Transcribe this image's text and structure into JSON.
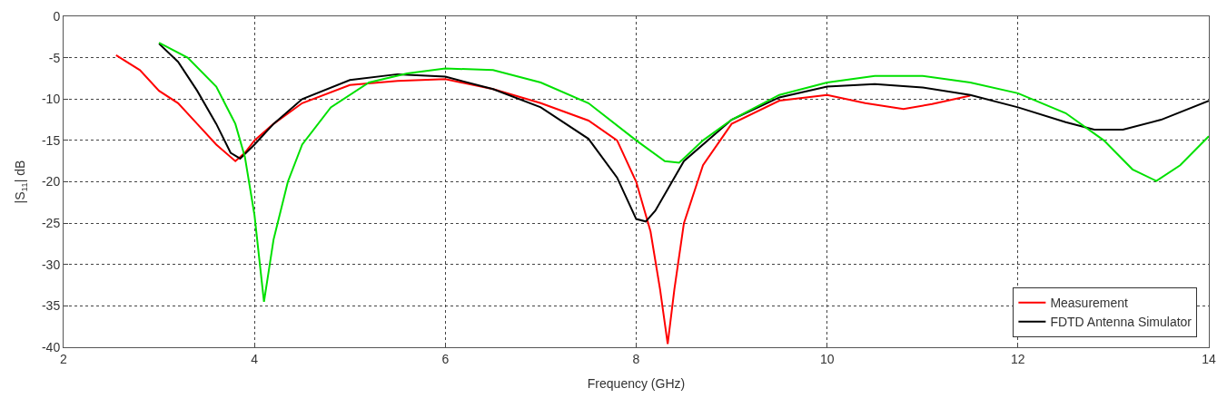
{
  "chart_data": {
    "type": "line",
    "xlabel": "Frequency (GHz)",
    "ylabel": "|S$_{11}$| dB",
    "xlim": [
      2,
      14
    ],
    "xticks": [
      2,
      4,
      6,
      8,
      10,
      12,
      14
    ],
    "ylim": [
      -40,
      0
    ],
    "yticks": [
      -40,
      -35,
      -30,
      -25,
      -20,
      -15,
      -10,
      -5,
      0
    ],
    "grid": true,
    "legend": "bottom right",
    "marker": "none",
    "line_style": "solid",
    "series": [
      {
        "name": "Measurement",
        "color": "#ff0000",
        "x": [
          2.55,
          2.8,
          3.0,
          3.2,
          3.4,
          3.6,
          3.8,
          3.9,
          4.0,
          4.2,
          4.5,
          5.0,
          5.5,
          6.0,
          6.5,
          7.0,
          7.5,
          7.8,
          8.0,
          8.15,
          8.25,
          8.33,
          8.4,
          8.5,
          8.7,
          9.0,
          9.5,
          10.0,
          10.4,
          10.8,
          11.1,
          11.5
        ],
        "values": [
          -4.7,
          -6.5,
          -9,
          -10.5,
          -13,
          -15.5,
          -17.5,
          -16.5,
          -15,
          -13,
          -10.5,
          -8.3,
          -7.8,
          -7.6,
          -8.8,
          -10.5,
          -12.6,
          -15,
          -20,
          -26,
          -33,
          -39.6,
          -33,
          -25,
          -18,
          -13,
          -10.2,
          -9.5,
          -10.5,
          -11.2,
          -10.6,
          -9.6
        ]
      },
      {
        "name": "FDTD Antenna Simulator",
        "color": "#000000",
        "x": [
          3.0,
          3.2,
          3.4,
          3.6,
          3.75,
          3.85,
          4.0,
          4.2,
          4.5,
          5.0,
          5.5,
          6.0,
          6.5,
          7.0,
          7.5,
          7.8,
          8.0,
          8.1,
          8.2,
          8.5,
          9.0,
          9.5,
          10.0,
          10.5,
          11.0,
          11.5,
          12.0,
          12.5,
          12.8,
          13.1,
          13.5,
          14.0
        ],
        "values": [
          -3.3,
          -5.5,
          -9,
          -13,
          -16.5,
          -17.2,
          -15.5,
          -13,
          -10,
          -7.7,
          -7.0,
          -7.3,
          -8.8,
          -11,
          -14.8,
          -19.5,
          -24.5,
          -24.8,
          -23.5,
          -17.5,
          -12.5,
          -9.8,
          -8.5,
          -8.2,
          -8.6,
          -9.5,
          -11,
          -12.8,
          -13.7,
          -13.7,
          -12.5,
          -10.2
        ]
      },
      {
        "color": "#00e000",
        "x": [
          3.0,
          3.3,
          3.6,
          3.8,
          3.9,
          4.0,
          4.1,
          4.2,
          4.35,
          4.5,
          4.8,
          5.2,
          5.6,
          6.0,
          6.5,
          7.0,
          7.5,
          8.0,
          8.3,
          8.45,
          8.7,
          9.0,
          9.5,
          10.0,
          10.5,
          11.0,
          11.5,
          12.0,
          12.5,
          12.9,
          13.2,
          13.45,
          13.7,
          14.0
        ],
        "values": [
          -3.2,
          -5,
          -8.5,
          -13,
          -17,
          -24,
          -34.5,
          -27,
          -20,
          -15.5,
          -11,
          -8,
          -6.9,
          -6.3,
          -6.5,
          -8,
          -10.5,
          -15,
          -17.5,
          -17.7,
          -15,
          -12.5,
          -9.5,
          -8,
          -7.2,
          -7.2,
          -8,
          -9.3,
          -11.7,
          -15,
          -18.5,
          -19.9,
          -18,
          -14.5
        ]
      }
    ]
  }
}
